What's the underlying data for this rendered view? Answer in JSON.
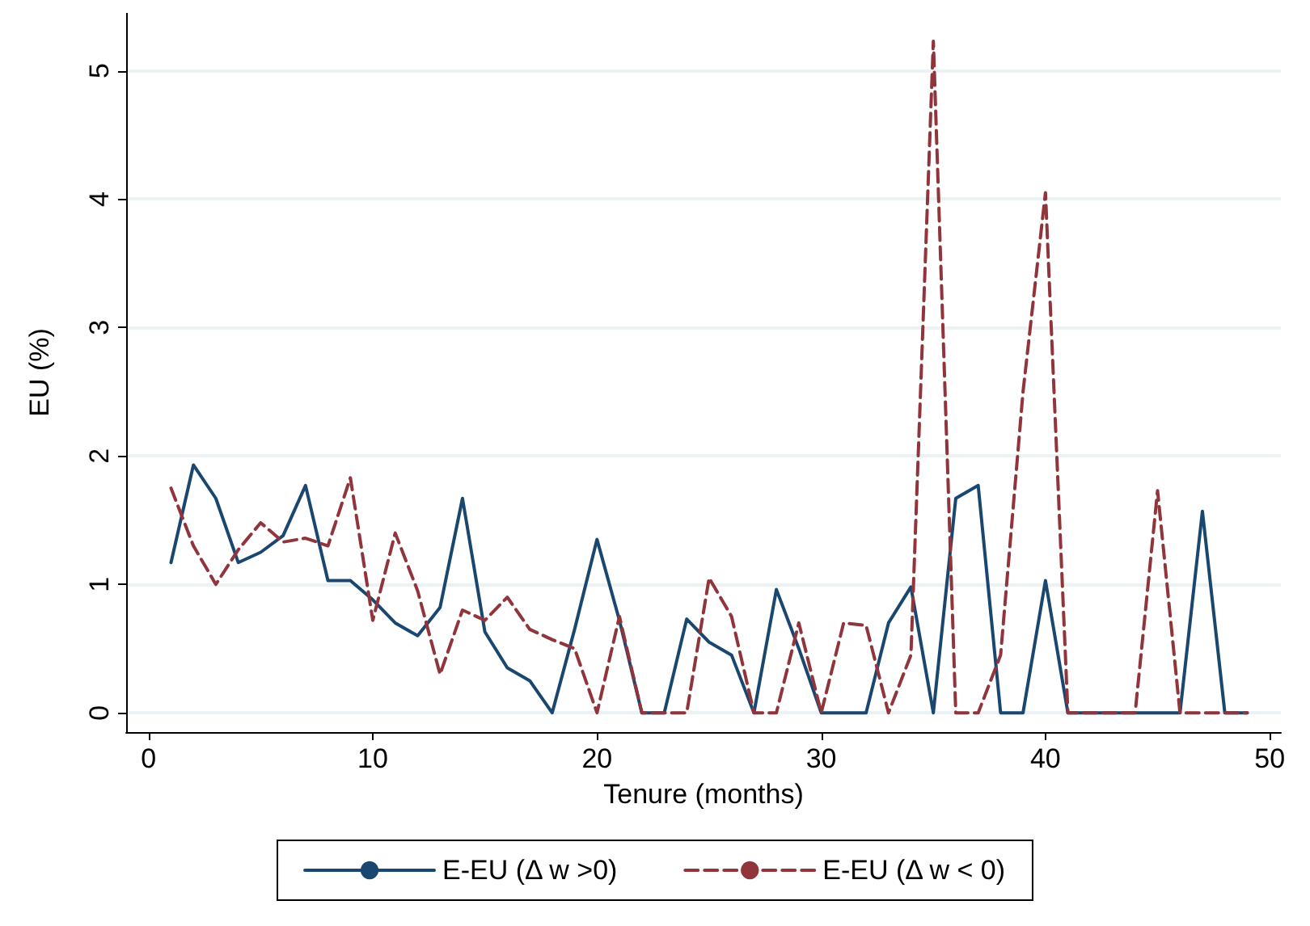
{
  "chart_data": {
    "type": "line",
    "xlabel": "Tenure (months)",
    "ylabel": "EU (%)",
    "x": [
      1,
      2,
      3,
      4,
      5,
      6,
      7,
      8,
      9,
      10,
      11,
      12,
      13,
      14,
      15,
      16,
      17,
      18,
      19,
      20,
      21,
      22,
      23,
      24,
      25,
      26,
      27,
      28,
      29,
      30,
      31,
      32,
      33,
      34,
      35,
      36,
      37,
      38,
      39,
      40,
      41,
      42,
      43,
      44,
      45,
      46,
      47,
      48,
      49
    ],
    "series": [
      {
        "name": "E-EU (Δ w >0)",
        "color": "#1a476f",
        "line_style": "solid",
        "values": [
          1.17,
          1.93,
          1.67,
          1.17,
          1.25,
          1.38,
          1.77,
          1.03,
          1.03,
          0.88,
          0.7,
          0.6,
          0.82,
          1.67,
          0.63,
          0.35,
          0.25,
          0,
          0.65,
          1.35,
          0.72,
          0,
          0,
          0.73,
          0.55,
          0.45,
          0,
          0.96,
          0.5,
          0,
          0,
          0,
          0.7,
          0.98,
          0,
          1.67,
          1.77,
          0,
          0,
          1.03,
          0,
          0,
          0,
          0,
          0,
          0,
          1.57,
          0,
          0
        ]
      },
      {
        "name": "E-EU (Δ w < 0)",
        "color": "#90353b",
        "line_style": "dashed",
        "values": [
          1.75,
          1.3,
          1.0,
          1.27,
          1.48,
          1.33,
          1.36,
          1.3,
          1.83,
          0.72,
          1.4,
          0.95,
          0.3,
          0.8,
          0.72,
          0.9,
          0.65,
          0.57,
          0.5,
          0,
          0.75,
          0,
          0,
          0,
          1.05,
          0.75,
          0,
          0,
          0.7,
          0,
          0.7,
          0.68,
          0,
          0.45,
          5.23,
          0,
          0,
          0.45,
          2.5,
          4.05,
          0,
          0,
          0,
          0,
          1.73,
          0,
          0,
          0,
          0
        ]
      }
    ],
    "xlim": [
      -1,
      50.5
    ],
    "xticks": [
      0,
      10,
      20,
      30,
      40,
      50
    ],
    "ylim": [
      -0.15,
      5.45
    ],
    "yticks": [
      0,
      1,
      2,
      3,
      4,
      5
    ],
    "grid": "y",
    "legend": "bottom",
    "marker": "none"
  }
}
